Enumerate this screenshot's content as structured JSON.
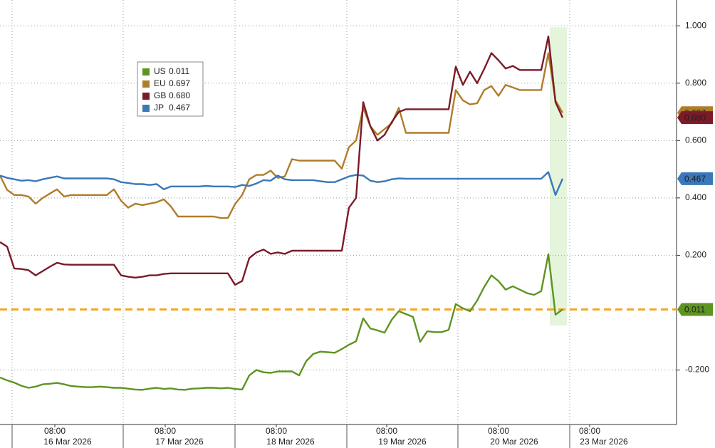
{
  "chart_data": {
    "type": "line",
    "series": [
      {
        "name": "US",
        "color": "#5e9420",
        "last_value_label": "0.011",
        "values": [
          -0.226,
          -0.236,
          -0.244,
          -0.255,
          -0.262,
          -0.258,
          -0.25,
          -0.248,
          -0.245,
          -0.25,
          -0.256,
          -0.258,
          -0.26,
          -0.26,
          -0.258,
          -0.26,
          -0.262,
          -0.262,
          -0.265,
          -0.268,
          -0.269,
          -0.265,
          -0.262,
          -0.266,
          -0.264,
          -0.268,
          -0.269,
          -0.265,
          -0.264,
          -0.262,
          -0.262,
          -0.264,
          -0.262,
          -0.266,
          -0.268,
          -0.219,
          -0.2,
          -0.208,
          -0.21,
          -0.205,
          -0.205,
          -0.205,
          -0.219,
          -0.169,
          -0.144,
          -0.136,
          -0.138,
          -0.14,
          -0.127,
          -0.112,
          -0.1,
          -0.02,
          -0.055,
          -0.062,
          -0.07,
          -0.025,
          0.005,
          -0.005,
          -0.015,
          -0.102,
          -0.065,
          -0.068,
          -0.068,
          -0.06,
          0.03,
          0.015,
          0.005,
          0.042,
          0.09,
          0.13,
          0.11,
          0.08,
          0.092,
          0.08,
          0.068,
          0.062,
          0.075,
          0.204,
          -0.007,
          0.011
        ]
      },
      {
        "name": "EU",
        "color": "#b07d2a",
        "last_value_label": "0.697",
        "values": [
          0.478,
          0.428,
          0.41,
          0.41,
          0.405,
          0.38,
          0.4,
          0.415,
          0.43,
          0.405,
          0.41,
          0.41,
          0.41,
          0.41,
          0.41,
          0.41,
          0.43,
          0.39,
          0.366,
          0.38,
          0.375,
          0.38,
          0.385,
          0.395,
          0.37,
          0.335,
          0.335,
          0.335,
          0.335,
          0.335,
          0.335,
          0.33,
          0.33,
          0.378,
          0.41,
          0.465,
          0.48,
          0.48,
          0.495,
          0.47,
          0.475,
          0.535,
          0.53,
          0.53,
          0.53,
          0.53,
          0.53,
          0.53,
          0.502,
          0.577,
          0.6,
          0.714,
          0.65,
          0.62,
          0.64,
          0.66,
          0.714,
          0.627,
          0.627,
          0.627,
          0.627,
          0.627,
          0.627,
          0.627,
          0.776,
          0.74,
          0.726,
          0.73,
          0.776,
          0.79,
          0.756,
          0.794,
          0.785,
          0.776,
          0.776,
          0.776,
          0.776,
          0.905,
          0.74,
          0.697
        ]
      },
      {
        "name": "GB",
        "color": "#7b1b28",
        "last_value_label": "0.680",
        "values": [
          0.246,
          0.23,
          0.154,
          0.152,
          0.148,
          0.13,
          0.145,
          0.16,
          0.174,
          0.168,
          0.167,
          0.167,
          0.167,
          0.167,
          0.167,
          0.167,
          0.167,
          0.13,
          0.125,
          0.122,
          0.125,
          0.13,
          0.13,
          0.135,
          0.137,
          0.137,
          0.137,
          0.137,
          0.137,
          0.137,
          0.137,
          0.137,
          0.137,
          0.097,
          0.11,
          0.19,
          0.21,
          0.22,
          0.205,
          0.21,
          0.205,
          0.216,
          0.216,
          0.216,
          0.216,
          0.216,
          0.216,
          0.216,
          0.216,
          0.366,
          0.4,
          0.734,
          0.65,
          0.6,
          0.62,
          0.664,
          0.7,
          0.709,
          0.709,
          0.709,
          0.709,
          0.709,
          0.709,
          0.709,
          0.858,
          0.794,
          0.84,
          0.8,
          0.85,
          0.905,
          0.88,
          0.851,
          0.86,
          0.846,
          0.846,
          0.846,
          0.846,
          0.963,
          0.734,
          0.68
        ]
      },
      {
        "name": "JP",
        "color": "#3a78b8",
        "last_value_label": "0.467",
        "values": [
          0.478,
          0.47,
          0.465,
          0.46,
          0.462,
          0.458,
          0.465,
          0.47,
          0.475,
          0.468,
          0.468,
          0.468,
          0.468,
          0.468,
          0.468,
          0.468,
          0.465,
          0.455,
          0.452,
          0.448,
          0.448,
          0.445,
          0.448,
          0.43,
          0.44,
          0.44,
          0.44,
          0.44,
          0.44,
          0.442,
          0.44,
          0.44,
          0.44,
          0.438,
          0.445,
          0.442,
          0.45,
          0.462,
          0.46,
          0.478,
          0.465,
          0.462,
          0.462,
          0.462,
          0.462,
          0.458,
          0.455,
          0.455,
          0.465,
          0.475,
          0.48,
          0.478,
          0.46,
          0.455,
          0.458,
          0.465,
          0.468,
          0.467,
          0.467,
          0.467,
          0.467,
          0.467,
          0.467,
          0.467,
          0.467,
          0.467,
          0.467,
          0.467,
          0.467,
          0.467,
          0.467,
          0.467,
          0.467,
          0.467,
          0.467,
          0.467,
          0.467,
          0.49,
          0.41,
          0.467
        ]
      }
    ],
    "xlim": [
      0,
      95
    ],
    "xticks": [
      {
        "value": 7.7,
        "label": "08:00"
      },
      {
        "value": 23.2,
        "label": "08:00"
      },
      {
        "value": 38.8,
        "label": "08:00"
      },
      {
        "value": 54.3,
        "label": "08:00"
      },
      {
        "value": 70,
        "label": "08:00"
      },
      {
        "value": 82.8,
        "label": "08:00"
      }
    ],
    "date_labels": [
      {
        "value": 9.5,
        "label": "16 Mar 2026"
      },
      {
        "value": 25.2,
        "label": "17 Mar 2026"
      },
      {
        "value": 40.8,
        "label": "18 Mar 2026"
      },
      {
        "value": 56.5,
        "label": "19 Mar 2026"
      },
      {
        "value": 72.2,
        "label": "20 Mar 2026"
      },
      {
        "value": 84.8,
        "label": "23 Mar 2026"
      }
    ],
    "day_breaks": [
      1.7,
      17.3,
      33.0,
      48.7,
      64.3,
      80.0
    ],
    "ylim": [
      -0.39,
      1.09
    ],
    "yticks": [
      {
        "value": -0.2,
        "label": "-0.200"
      },
      {
        "value": 0.2,
        "label": "0.200"
      },
      {
        "value": 0.4,
        "label": "0.400"
      },
      {
        "value": 0.6,
        "label": "0.600"
      },
      {
        "value": 0.8,
        "label": "0.800"
      },
      {
        "value": 1.0,
        "label": "1.000"
      }
    ],
    "grid": true,
    "reference_line": {
      "value": 0.011,
      "color": "#f5a623"
    },
    "highlight": {
      "xlim": [
        77.2,
        79.6
      ],
      "ylim": [
        -0.045,
        0.995
      ],
      "color": "#e4f5dc"
    }
  }
}
